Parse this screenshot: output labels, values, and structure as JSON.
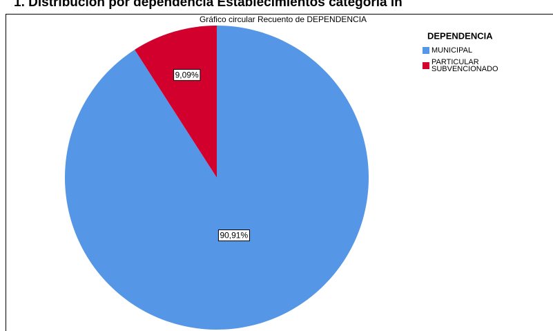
{
  "chart_data": {
    "type": "pie",
    "title": "1. Distribución por dependencia Establecimientos categoría in",
    "subtitle": "Gráfico circular Recuento de DEPENDENCIA",
    "legend_title": "DEPENDENCIA",
    "categories": [
      "MUNICIPAL",
      "PARTICULAR SUBVENCIONADO"
    ],
    "values": [
      90.91,
      9.09
    ],
    "value_labels": [
      "90,91%",
      "9,09%"
    ],
    "colors": [
      "#5596e6",
      "#d2002c"
    ],
    "legend": "top-right"
  }
}
